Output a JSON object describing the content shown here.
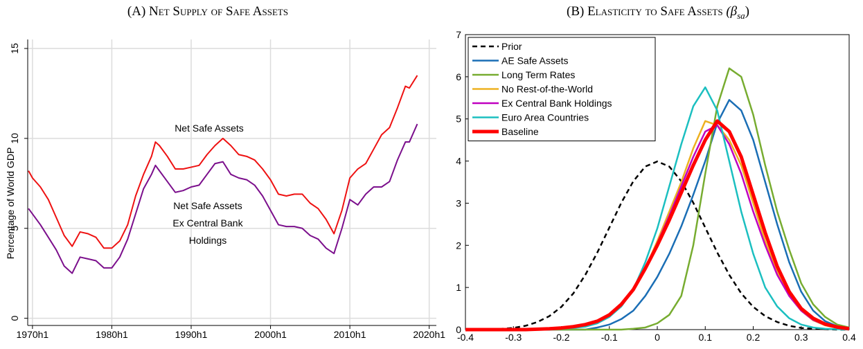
{
  "chart_data": [
    {
      "type": "line",
      "title": "(A) Net Supply of Safe Assets",
      "y_label": "Percentage of World GDP",
      "xlim": [
        1969.4,
        2020.9
      ],
      "xticks": [
        {
          "value": 1970,
          "label": "1970h1"
        },
        {
          "value": 1980,
          "label": "1980h1"
        },
        {
          "value": 1990,
          "label": "1990h1"
        },
        {
          "value": 2000,
          "label": "2000h1"
        },
        {
          "value": 2010,
          "label": "2010h1"
        },
        {
          "value": 2020,
          "label": "2020h1"
        }
      ],
      "ylim": [
        -0.4,
        15.5
      ],
      "yticks": [
        0,
        5,
        10,
        15
      ],
      "grid": true,
      "x": [
        1969.5,
        1970,
        1971,
        1972,
        1973,
        1974,
        1975,
        1976,
        1977,
        1978,
        1979,
        1980,
        1981,
        1982,
        1983,
        1984,
        1985,
        1985.5,
        1986,
        1987,
        1988,
        1989,
        1990,
        1991,
        1992,
        1993,
        1994,
        1995,
        1996,
        1997,
        1998,
        1999,
        2000,
        2001,
        2002,
        2003,
        2004,
        2005,
        2006,
        2007,
        2008,
        2009,
        2010,
        2011,
        2012,
        2013,
        2014,
        2015,
        2016,
        2017,
        2017.5,
        2018.5
      ],
      "series": [
        {
          "name": "Net Safe Assets",
          "color": "#ee1111",
          "values": [
            8.2,
            7.8,
            7.3,
            6.6,
            5.6,
            4.6,
            4.0,
            4.8,
            4.7,
            4.5,
            3.9,
            3.9,
            4.3,
            5.2,
            6.8,
            8.0,
            9.0,
            9.8,
            9.6,
            9.0,
            8.3,
            8.3,
            8.4,
            8.5,
            9.1,
            9.6,
            10.0,
            9.6,
            9.1,
            9.0,
            8.8,
            8.3,
            7.7,
            6.9,
            6.8,
            6.9,
            6.9,
            6.4,
            6.1,
            5.5,
            4.7,
            6.0,
            7.8,
            8.3,
            8.6,
            9.4,
            10.2,
            10.6,
            11.7,
            12.9,
            12.8,
            13.5
          ]
        },
        {
          "name": "Net Safe Assets Ex Central Bank Holdings",
          "color": "#7b0f8c",
          "values": [
            6.1,
            5.8,
            5.2,
            4.5,
            3.8,
            2.9,
            2.5,
            3.4,
            3.3,
            3.2,
            2.8,
            2.8,
            3.4,
            4.4,
            5.8,
            7.2,
            8.0,
            8.5,
            8.2,
            7.6,
            7.0,
            7.1,
            7.3,
            7.4,
            8.0,
            8.6,
            8.7,
            8.0,
            7.8,
            7.7,
            7.4,
            6.8,
            6.0,
            5.2,
            5.1,
            5.1,
            5.0,
            4.6,
            4.4,
            3.9,
            3.6,
            5.0,
            6.6,
            6.3,
            6.9,
            7.3,
            7.3,
            7.6,
            8.8,
            9.8,
            9.8,
            10.8
          ]
        }
      ],
      "annotations": [
        {
          "lines": [
            "Net Safe Assets"
          ],
          "color": "#ee1111"
        },
        {
          "lines": [
            "Net Safe Assets",
            "Ex Central Bank",
            "Holdings"
          ],
          "color": "#7b0f8c"
        }
      ]
    },
    {
      "type": "line",
      "title": "(B) Elasticity to Safe Assets",
      "title_math": {
        "base": "(β",
        "sub": "sa",
        "close": ")"
      },
      "xlim": [
        -0.4,
        0.4
      ],
      "xticks": [
        -0.4,
        -0.3,
        -0.2,
        -0.1,
        0,
        0.1,
        0.2,
        0.3,
        0.4
      ],
      "ylim": [
        0,
        7
      ],
      "yticks": [
        0,
        1,
        2,
        3,
        4,
        5,
        6,
        7
      ],
      "grid": false,
      "legend": "upper left",
      "x": [
        -0.4,
        -0.375,
        -0.35,
        -0.325,
        -0.3,
        -0.275,
        -0.25,
        -0.225,
        -0.2,
        -0.175,
        -0.15,
        -0.125,
        -0.1,
        -0.075,
        -0.05,
        -0.025,
        0,
        0.025,
        0.05,
        0.075,
        0.1,
        0.125,
        0.15,
        0.175,
        0.2,
        0.225,
        0.25,
        0.275,
        0.3,
        0.325,
        0.35,
        0.375,
        0.4
      ],
      "series": [
        {
          "name": "Prior",
          "color": "#000000",
          "dashed": true,
          "line_width": 2.5,
          "values": [
            0,
            0,
            0.01,
            0.02,
            0.04,
            0.09,
            0.18,
            0.32,
            0.54,
            0.86,
            1.3,
            1.83,
            2.42,
            3.01,
            3.52,
            3.87,
            3.99,
            3.87,
            3.52,
            3.01,
            2.42,
            1.83,
            1.3,
            0.86,
            0.54,
            0.32,
            0.18,
            0.09,
            0.04,
            0.02,
            0.01,
            0,
            0
          ]
        },
        {
          "name": "AE Safe Assets",
          "color": "#1a6eb5",
          "line_width": 2.5,
          "values": [
            0,
            0,
            0,
            0,
            0,
            0,
            0,
            0,
            0,
            0,
            0,
            0.05,
            0.12,
            0.25,
            0.45,
            0.8,
            1.25,
            1.8,
            2.45,
            3.2,
            4.0,
            4.9,
            5.45,
            5.2,
            4.5,
            3.5,
            2.5,
            1.6,
            0.9,
            0.45,
            0.2,
            0.08,
            0.03
          ]
        },
        {
          "name": "Long Term Rates",
          "color": "#77ac30",
          "line_width": 2.5,
          "values": [
            0,
            0,
            0,
            0,
            0,
            0,
            0,
            0,
            0,
            0,
            0,
            0,
            0,
            0,
            0.02,
            0.05,
            0.15,
            0.35,
            0.8,
            2.0,
            3.7,
            5.3,
            6.2,
            6.0,
            5.1,
            3.9,
            2.8,
            1.9,
            1.1,
            0.6,
            0.3,
            0.12,
            0.05
          ]
        },
        {
          "name": "No Rest-of-the-World",
          "color": "#edb120",
          "line_width": 2.5,
          "values": [
            0,
            0,
            0,
            0,
            0,
            0,
            0.01,
            0.02,
            0.04,
            0.07,
            0.12,
            0.2,
            0.35,
            0.6,
            0.95,
            1.45,
            2.1,
            2.8,
            3.5,
            4.3,
            4.95,
            4.85,
            4.5,
            3.9,
            3.0,
            2.1,
            1.35,
            0.8,
            0.45,
            0.22,
            0.1,
            0.04,
            0.02
          ]
        },
        {
          "name": "Ex Central Bank Holdings",
          "color": "#c000c0",
          "line_width": 2.5,
          "values": [
            0,
            0,
            0,
            0,
            0,
            0,
            0.01,
            0.02,
            0.04,
            0.07,
            0.12,
            0.2,
            0.35,
            0.6,
            0.95,
            1.45,
            2.05,
            2.7,
            3.4,
            4.1,
            4.7,
            4.85,
            4.4,
            3.7,
            2.8,
            2.0,
            1.3,
            0.8,
            0.45,
            0.23,
            0.11,
            0.05,
            0.02
          ]
        },
        {
          "name": "Euro Area Countries",
          "color": "#1bbfc0",
          "line_width": 2.5,
          "values": [
            0,
            0,
            0,
            0,
            0,
            0,
            0,
            0,
            0.02,
            0.04,
            0.07,
            0.15,
            0.3,
            0.55,
            0.95,
            1.6,
            2.4,
            3.4,
            4.4,
            5.3,
            5.75,
            5.2,
            4.0,
            2.8,
            1.8,
            1.0,
            0.55,
            0.27,
            0.12,
            0.05,
            0.02,
            0.01,
            0
          ]
        },
        {
          "name": "Baseline",
          "color": "#ff0000",
          "line_width": 5,
          "values": [
            0,
            0,
            0,
            0,
            0,
            0,
            0.01,
            0.02,
            0.04,
            0.07,
            0.12,
            0.2,
            0.35,
            0.6,
            0.95,
            1.45,
            2.0,
            2.6,
            3.25,
            3.9,
            4.5,
            4.95,
            4.7,
            4.1,
            3.2,
            2.3,
            1.5,
            0.9,
            0.5,
            0.27,
            0.13,
            0.06,
            0.02
          ]
        }
      ]
    }
  ]
}
